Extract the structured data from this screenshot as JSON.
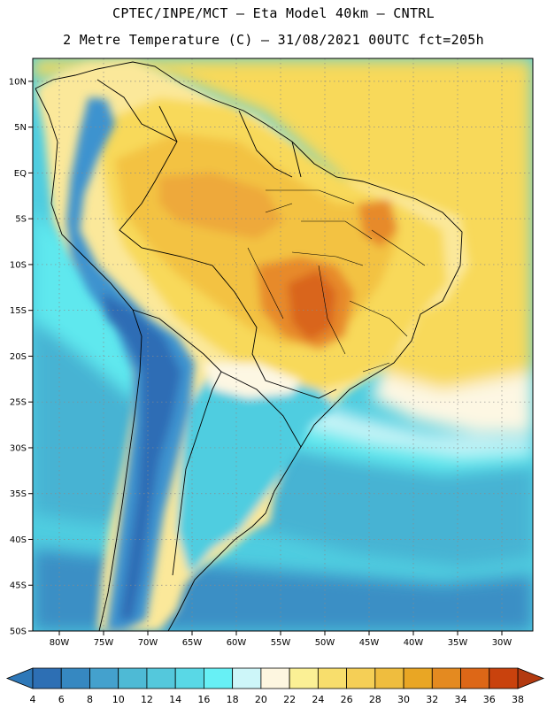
{
  "header": {
    "line1": "CPTEC/INPE/MCT –  Eta Model 40km – CNTRL",
    "line2": "2 Metre Temperature (C) – 31/08/2021 00UTC fct=205h"
  },
  "map": {
    "lat_range": [
      -50,
      12.5
    ],
    "lon_range": [
      -83,
      -26.5
    ],
    "lat_ticks": [
      {
        "value": 10,
        "label": "10N"
      },
      {
        "value": 5,
        "label": "5N"
      },
      {
        "value": 0,
        "label": "EQ"
      },
      {
        "value": -5,
        "label": "5S"
      },
      {
        "value": -10,
        "label": "10S"
      },
      {
        "value": -15,
        "label": "15S"
      },
      {
        "value": -20,
        "label": "20S"
      },
      {
        "value": -25,
        "label": "25S"
      },
      {
        "value": -30,
        "label": "30S"
      },
      {
        "value": -35,
        "label": "35S"
      },
      {
        "value": -40,
        "label": "40S"
      },
      {
        "value": -45,
        "label": "45S"
      },
      {
        "value": -50,
        "label": "50S"
      }
    ],
    "lon_ticks": [
      {
        "value": -80,
        "label": "80W"
      },
      {
        "value": -75,
        "label": "75W"
      },
      {
        "value": -70,
        "label": "70W"
      },
      {
        "value": -65,
        "label": "65W"
      },
      {
        "value": -60,
        "label": "60W"
      },
      {
        "value": -55,
        "label": "55W"
      },
      {
        "value": -50,
        "label": "50W"
      },
      {
        "value": -45,
        "label": "45W"
      },
      {
        "value": -40,
        "label": "40W"
      },
      {
        "value": -35,
        "label": "35W"
      },
      {
        "value": -30,
        "label": "30W"
      }
    ],
    "colors": {
      "ocean_deep": "#3b8fc5",
      "ocean_mid": "#47b3d3",
      "ocean_light": "#4fcde0",
      "coast_cyan": "#5ee8ee",
      "pale_cyan": "#c9f4f7",
      "cream": "#fdf7e3",
      "pale_yellow": "#fbe89a",
      "yellow": "#f8d95a",
      "gold": "#f3c243",
      "orange_light": "#eea93a",
      "orange": "#e78a2a",
      "dark_orange": "#d9651c",
      "andes_dark": "#2f6db5",
      "andes_mid": "#3e93cf"
    }
  },
  "colorbar": {
    "labels": [
      "4",
      "6",
      "8",
      "10",
      "12",
      "14",
      "16",
      "18",
      "20",
      "22",
      "24",
      "26",
      "28",
      "30",
      "32",
      "34",
      "36",
      "38"
    ],
    "colors": [
      "#2d6fb4",
      "#3688c1",
      "#44a1cd",
      "#4ebad5",
      "#54c8dc",
      "#59d8e6",
      "#67f0f5",
      "#cdf6f9",
      "#fdf6e0",
      "#fbf095",
      "#f8de6c",
      "#f5cf56",
      "#efbd3e",
      "#e9a624",
      "#e48a20",
      "#dd6717",
      "#c9420d"
    ],
    "low_arrow_color": "#2e78b8",
    "high_arrow_color": "#b33a10"
  }
}
